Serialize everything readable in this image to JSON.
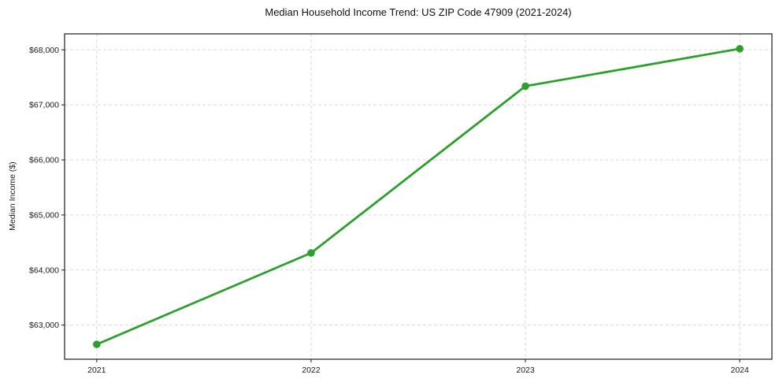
{
  "chart_data": {
    "type": "line",
    "title": "Median Household Income Trend: US ZIP Code 47909 (2021-2024)",
    "xlabel": "",
    "ylabel": "Median Income ($)",
    "x": [
      2021,
      2022,
      2023,
      2024
    ],
    "x_tick_labels": [
      "2021",
      "2022",
      "2023",
      "2024"
    ],
    "series": [
      {
        "name": "Median Income",
        "values": [
          62650,
          64310,
          67340,
          68020
        ],
        "color": "#2ca02c",
        "marker": "circle"
      }
    ],
    "y_ticks": [
      63000,
      64000,
      65000,
      66000,
      67000,
      68000
    ],
    "y_tick_labels": [
      "$63,000",
      "$64,000",
      "$65,000",
      "$66,000",
      "$67,000",
      "$68,000"
    ],
    "xlim": [
      2020.85,
      2024.15
    ],
    "ylim": [
      62380,
      68290
    ],
    "grid": true,
    "grid_style": "dashed",
    "legend": false,
    "colors": {
      "line": "#2ca02c",
      "grid": "#d9d9d9",
      "spine": "#1a1a1a",
      "text": "#1a1a1a"
    }
  }
}
